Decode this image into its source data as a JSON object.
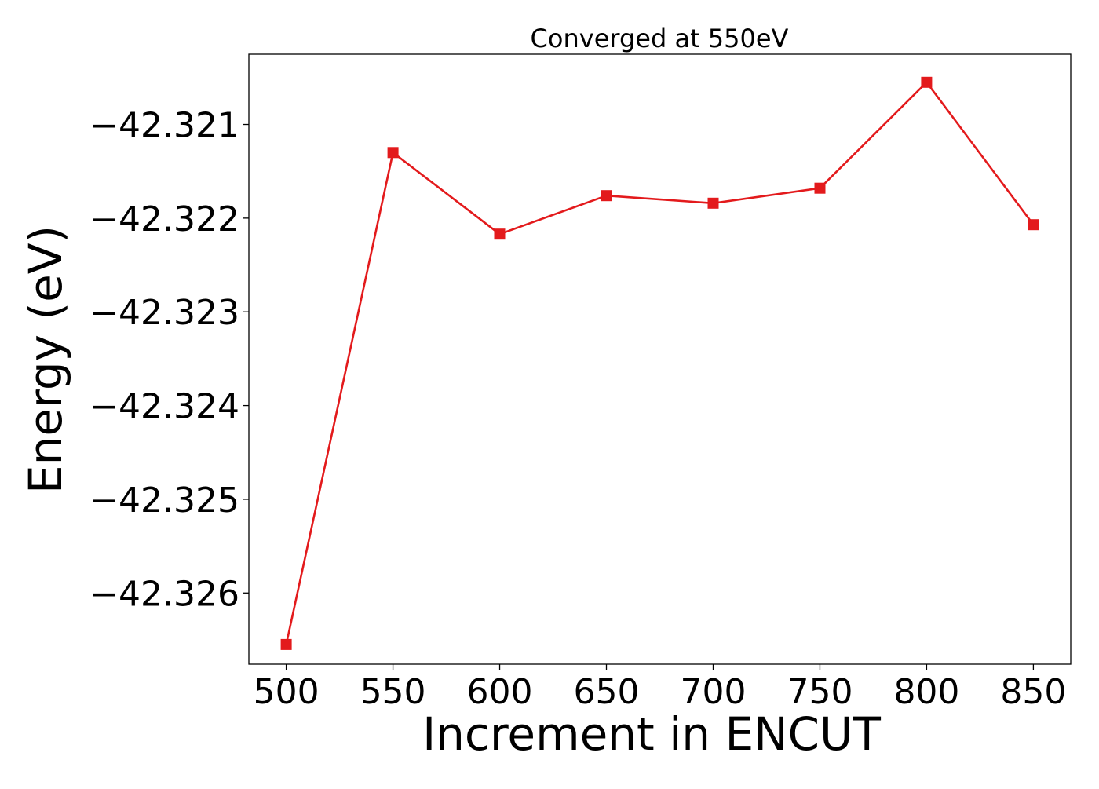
{
  "chart_data": {
    "type": "line",
    "title": "Converged at 550eV",
    "xlabel": "Increment in ENCUT",
    "ylabel": "Energy (eV)",
    "x": [
      500,
      550,
      600,
      650,
      700,
      750,
      800,
      850
    ],
    "series": [
      {
        "values": [
          -42.32655,
          -42.3213,
          -42.32217,
          -42.32176,
          -42.32184,
          -42.32168,
          -42.32055,
          -42.32207
        ],
        "color": "#e31a1c",
        "marker": "square"
      }
    ],
    "xticks": [
      "500",
      "550",
      "600",
      "650",
      "700",
      "750",
      "800",
      "850"
    ],
    "yticks": [
      "−42.321",
      "−42.322",
      "−42.323",
      "−42.324",
      "−42.325",
      "−42.326"
    ],
    "ytick_values": [
      -42.321,
      -42.322,
      -42.323,
      -42.324,
      -42.325,
      -42.326
    ],
    "xlim": [
      482.5,
      867.5
    ],
    "ylim": [
      -42.32676,
      -42.32025
    ],
    "grid": false,
    "legend": "none"
  }
}
